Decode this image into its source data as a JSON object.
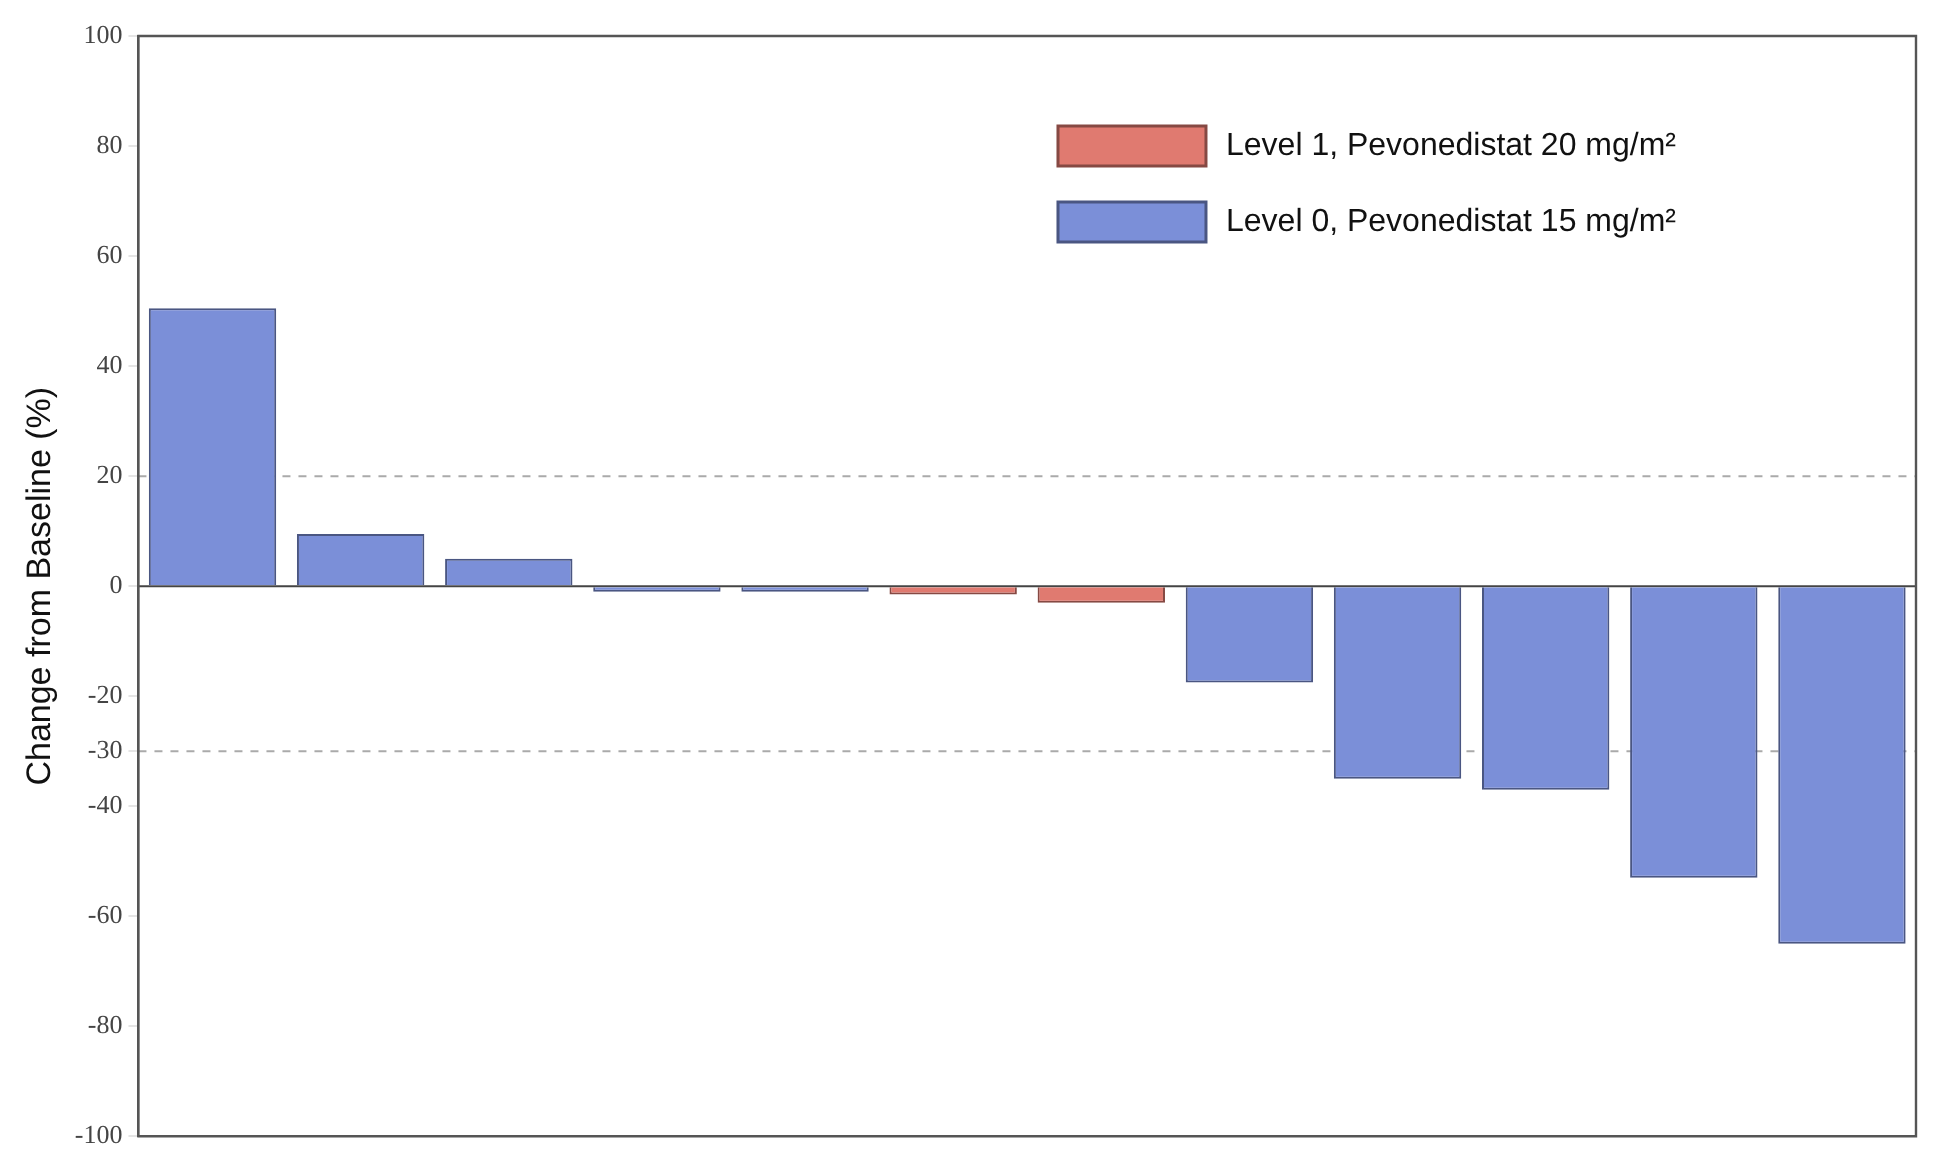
{
  "chart_data": {
    "type": "bar",
    "ylabel": "Change from Baseline (%)",
    "categories": [
      null,
      null,
      null,
      null,
      null,
      null,
      null,
      null,
      null,
      null,
      null,
      null
    ],
    "series": [
      {
        "name": "Level 1, Pevonedistat 20 mg/m²",
        "color": "#e07a70",
        "values": [
          null,
          null,
          null,
          null,
          null,
          -1.5,
          -3,
          null,
          null,
          null,
          null,
          null
        ]
      },
      {
        "name": "Level 0, Pevonedistat 15 mg/m²",
        "color": "#7b8fd8",
        "values": [
          50.5,
          9.5,
          5,
          -1,
          -1,
          null,
          null,
          -17.5,
          -35,
          -37,
          -53,
          -65
        ]
      }
    ],
    "ylim": [
      -100,
      100
    ],
    "yticks": [
      -100,
      -80,
      -60,
      -40,
      -30,
      -20,
      0,
      20,
      40,
      60,
      80,
      100
    ],
    "ref_lines": [
      {
        "axis": "y",
        "value": 20,
        "color": "#aaaaaa",
        "line_style": "dashed"
      },
      {
        "axis": "y",
        "value": -30,
        "color": "#aaaaaa",
        "line_style": "dashed"
      }
    ],
    "grid": false,
    "legend": "top right",
    "tick_labels": "y"
  }
}
